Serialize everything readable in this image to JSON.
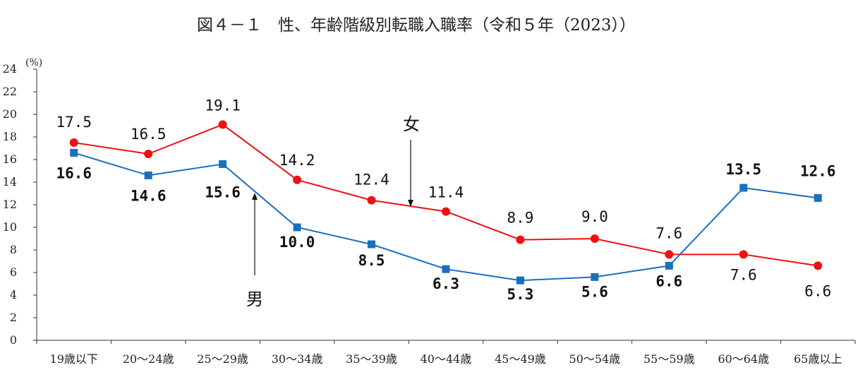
{
  "chart_data": {
    "type": "line",
    "title": "図４－１　性、年齢階級別転職入職率（令和５年（2023））",
    "ylabel": "(%)",
    "xlabel": "",
    "ylim": [
      0,
      24
    ],
    "yticks": [
      0,
      2,
      4,
      6,
      8,
      10,
      12,
      14,
      16,
      18,
      20,
      22,
      24
    ],
    "grid": false,
    "categories": [
      "19歳以下",
      "20～24歳",
      "25～29歳",
      "30～34歳",
      "35～39歳",
      "40～44歳",
      "45～49歳",
      "50～54歳",
      "55～59歳",
      "60～64歳",
      "65歳以上"
    ],
    "series": [
      {
        "name": "女",
        "color": "#ee1111",
        "marker": "circle",
        "values": [
          17.5,
          16.5,
          19.1,
          14.2,
          12.4,
          11.4,
          8.9,
          9.0,
          7.6,
          7.6,
          6.6
        ],
        "labels": [
          "17.5",
          "16.5",
          "19.1",
          "14.2",
          "12.4",
          "11.4",
          "8.9",
          "9.0",
          "7.6",
          "7.6",
          "6.6"
        ]
      },
      {
        "name": "男",
        "color": "#1a6fbd",
        "marker": "square",
        "values": [
          16.6,
          14.6,
          15.6,
          10.0,
          8.5,
          6.3,
          5.3,
          5.6,
          6.6,
          13.5,
          12.6
        ],
        "labels": [
          "16.6",
          "14.6",
          "15.6",
          "10.0",
          "8.5",
          "6.3",
          "5.3",
          "5.6",
          "6.6",
          "13.5",
          "12.6"
        ]
      }
    ]
  }
}
